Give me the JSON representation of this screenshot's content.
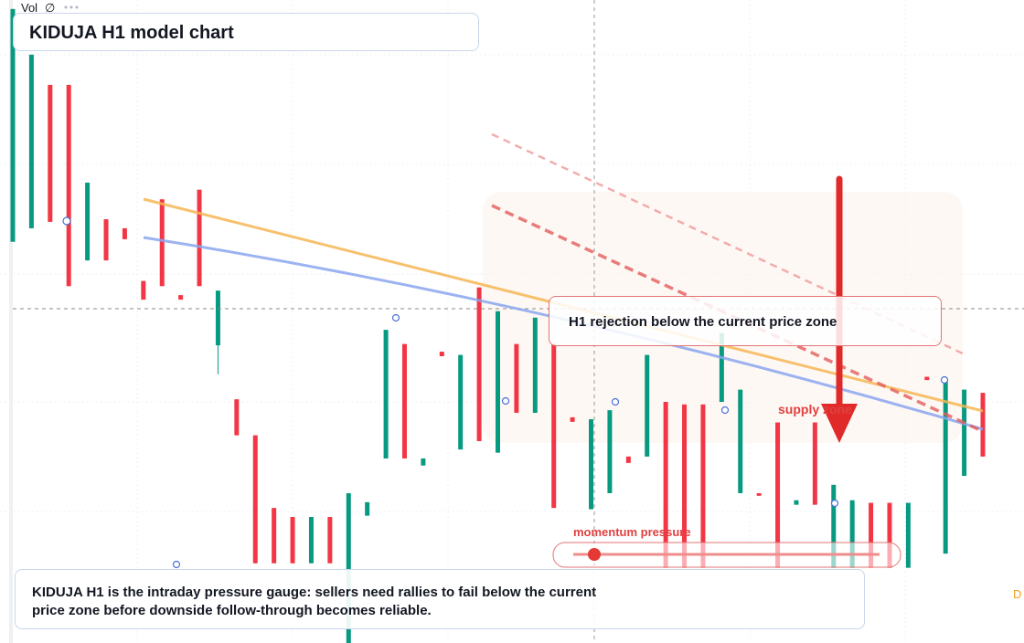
{
  "toolbar": {
    "vol": "Vol",
    "symbol": "∅"
  },
  "chart_data": {
    "type": "candlestick",
    "title": "KIDUJA H1 model chart",
    "ylim": [
      0,
      100
    ],
    "up_color": "#089981",
    "down_color": "#f23645",
    "open": [
      62.4,
      64.5,
      86.8,
      86.8,
      59.5,
      65.9,
      64.5,
      56.3,
      69.0,
      54.1,
      70.5,
      46.3,
      37.9,
      32.3,
      21.0,
      19.6,
      12.4,
      19.6,
      0,
      19.8,
      28.7,
      46.5,
      27.6,
      45.3,
      30.1,
      55.3,
      29.6,
      46.5,
      35.8,
      46.5,
      35.1,
      20.8,
      23.3,
      29.0,
      29.0,
      37.5,
      37.1,
      37.1,
      37.5,
      23.3,
      23.3,
      34.3,
      21.5,
      34.3,
      11.7,
      11.7,
      21.8,
      21.8,
      11.7,
      41.4,
      13.9,
      26.0,
      38.9
    ],
    "high": [
      98.6,
      91.5,
      86.8,
      86.8,
      71.6,
      65.9,
      64.5,
      56.3,
      69.0,
      54.1,
      70.5,
      54.8,
      37.9,
      32.3,
      21.0,
      19.6,
      19.6,
      19.6,
      23.3,
      21.9,
      48.7,
      46.5,
      28.7,
      45.3,
      44.8,
      55.3,
      51.6,
      46.5,
      50.6,
      46.5,
      35.1,
      34.8,
      36.2,
      29.0,
      44.8,
      37.5,
      37.1,
      37.1,
      48.2,
      39.4,
      23.3,
      34.3,
      22.2,
      34.3,
      24.6,
      22.2,
      21.8,
      21.8,
      21.8,
      41.4,
      40.6,
      39.4,
      38.9
    ],
    "low": [
      62.4,
      64.5,
      65.5,
      55.5,
      59.5,
      59.5,
      62.8,
      53.4,
      55.5,
      53.4,
      55.5,
      41.8,
      32.3,
      12.4,
      12.4,
      12.4,
      12.4,
      12.4,
      0,
      19.8,
      28.7,
      28.7,
      27.6,
      44.6,
      30.1,
      31.4,
      29.6,
      35.8,
      35.8,
      21.0,
      34.4,
      20.8,
      23.3,
      28.0,
      29.0,
      11.7,
      11.7,
      11.7,
      37.5,
      23.3,
      22.9,
      11.7,
      21.5,
      21.5,
      11.7,
      11.7,
      11.7,
      11.7,
      11.7,
      40.9,
      13.9,
      26.0,
      29.0
    ],
    "close": [
      98.6,
      91.5,
      65.5,
      55.5,
      71.6,
      59.5,
      62.8,
      53.4,
      55.5,
      53.4,
      55.5,
      54.8,
      32.3,
      12.4,
      12.4,
      12.4,
      19.6,
      12.4,
      23.3,
      21.9,
      48.7,
      28.7,
      28.7,
      44.6,
      44.8,
      31.4,
      51.6,
      35.8,
      50.6,
      21.0,
      34.4,
      34.8,
      36.2,
      28.0,
      44.8,
      11.7,
      11.7,
      11.7,
      48.2,
      39.4,
      22.9,
      11.7,
      22.2,
      21.5,
      24.6,
      22.2,
      11.7,
      11.7,
      21.8,
      40.9,
      40.6,
      39.4,
      29.0
    ]
  },
  "annotations": {
    "rejection": "H1 rejection below the current price zone",
    "supply": "supply zone",
    "momentum": "momentum pressure",
    "edge": "D"
  },
  "caption": "KIDUJA H1 is the intraday pressure gauge: sellers need rallies to fail below the current price zone before downside follow-through becomes reliable."
}
